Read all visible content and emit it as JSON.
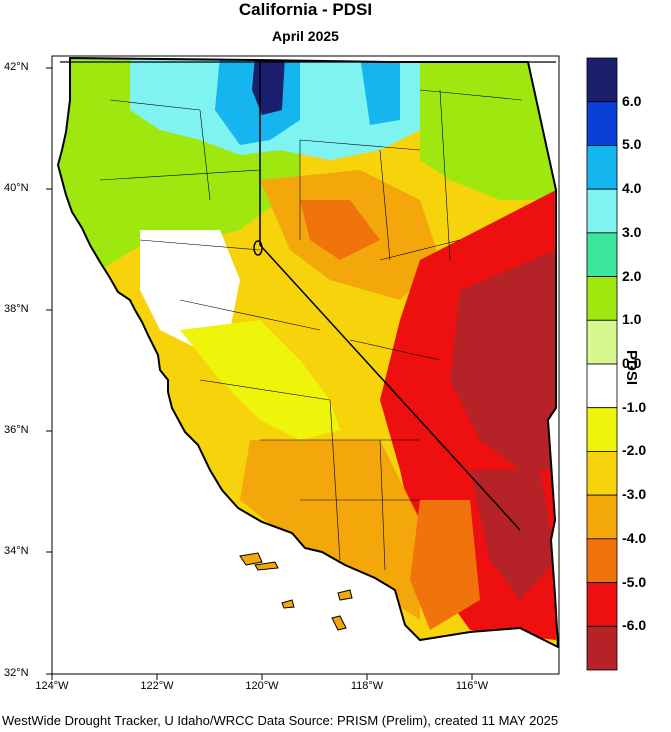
{
  "title": "California - PDSI",
  "subtitle": "April 2025",
  "colorbar": {
    "title": "PDSI",
    "tick_labels": [
      "6.0",
      "5.0",
      "4.0",
      "3.0",
      "2.0",
      "1.0",
      "0.0",
      "-1.0",
      "-2.0",
      "-3.0",
      "-4.0",
      "-5.0",
      "-6.0"
    ],
    "colors": [
      "#1a1f6e",
      "#0a3fd8",
      "#15b5ef",
      "#7ff2f2",
      "#3de59a",
      "#9fe80f",
      "#d7f78f",
      "#ffffff",
      "#eef50a",
      "#f7d30c",
      "#f3a70b",
      "#f1730b",
      "#ee1010",
      "#b52227"
    ]
  },
  "axes": {
    "lat_labels": [
      "42°N",
      "40°N",
      "38°N",
      "36°N",
      "34°N",
      "32°N"
    ],
    "lon_labels": [
      "124°W",
      "122°W",
      "120°W",
      "118°W",
      "116°W"
    ]
  },
  "credit": "WestWide Drought Tracker, U Idaho/WRCC Data Source: PRISM (Prelim), created 11 MAY 2025"
}
